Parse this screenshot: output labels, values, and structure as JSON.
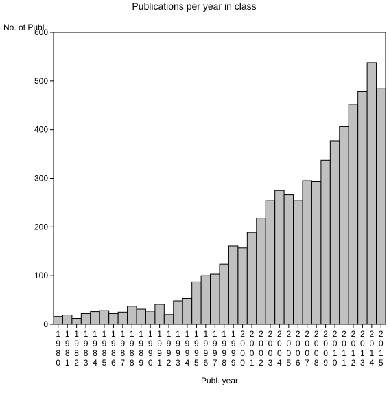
{
  "chart_data": {
    "type": "bar",
    "title": "Publications per year in class",
    "ylabel": "No. of Publ.",
    "xlabel": "Publ. year",
    "ylim": [
      0,
      600
    ],
    "yticks": [
      0,
      100,
      200,
      300,
      400,
      500,
      600
    ],
    "grid": false,
    "legend": "none",
    "categories": [
      "1980",
      "1981",
      "1982",
      "1983",
      "1984",
      "1985",
      "1986",
      "1987",
      "1988",
      "1989",
      "1990",
      "1991",
      "1992",
      "1993",
      "1994",
      "1995",
      "1996",
      "1997",
      "1998",
      "1999",
      "2000",
      "2001",
      "2002",
      "2003",
      "2004",
      "2005",
      "2006",
      "2007",
      "2008",
      "2009",
      "2010",
      "2011",
      "2012",
      "2013",
      "2014",
      "2015"
    ],
    "values": [
      16,
      19,
      12,
      22,
      26,
      28,
      22,
      25,
      37,
      31,
      27,
      41,
      20,
      48,
      53,
      87,
      100,
      103,
      124,
      161,
      157,
      189,
      218,
      254,
      275,
      266,
      254,
      295,
      293,
      337,
      377,
      406,
      452,
      478,
      538,
      484
    ],
    "colors": {
      "bar_fill": "#c0c0c0",
      "bar_stroke": "#000000",
      "axis": "#000000",
      "background": "#ffffff"
    }
  }
}
